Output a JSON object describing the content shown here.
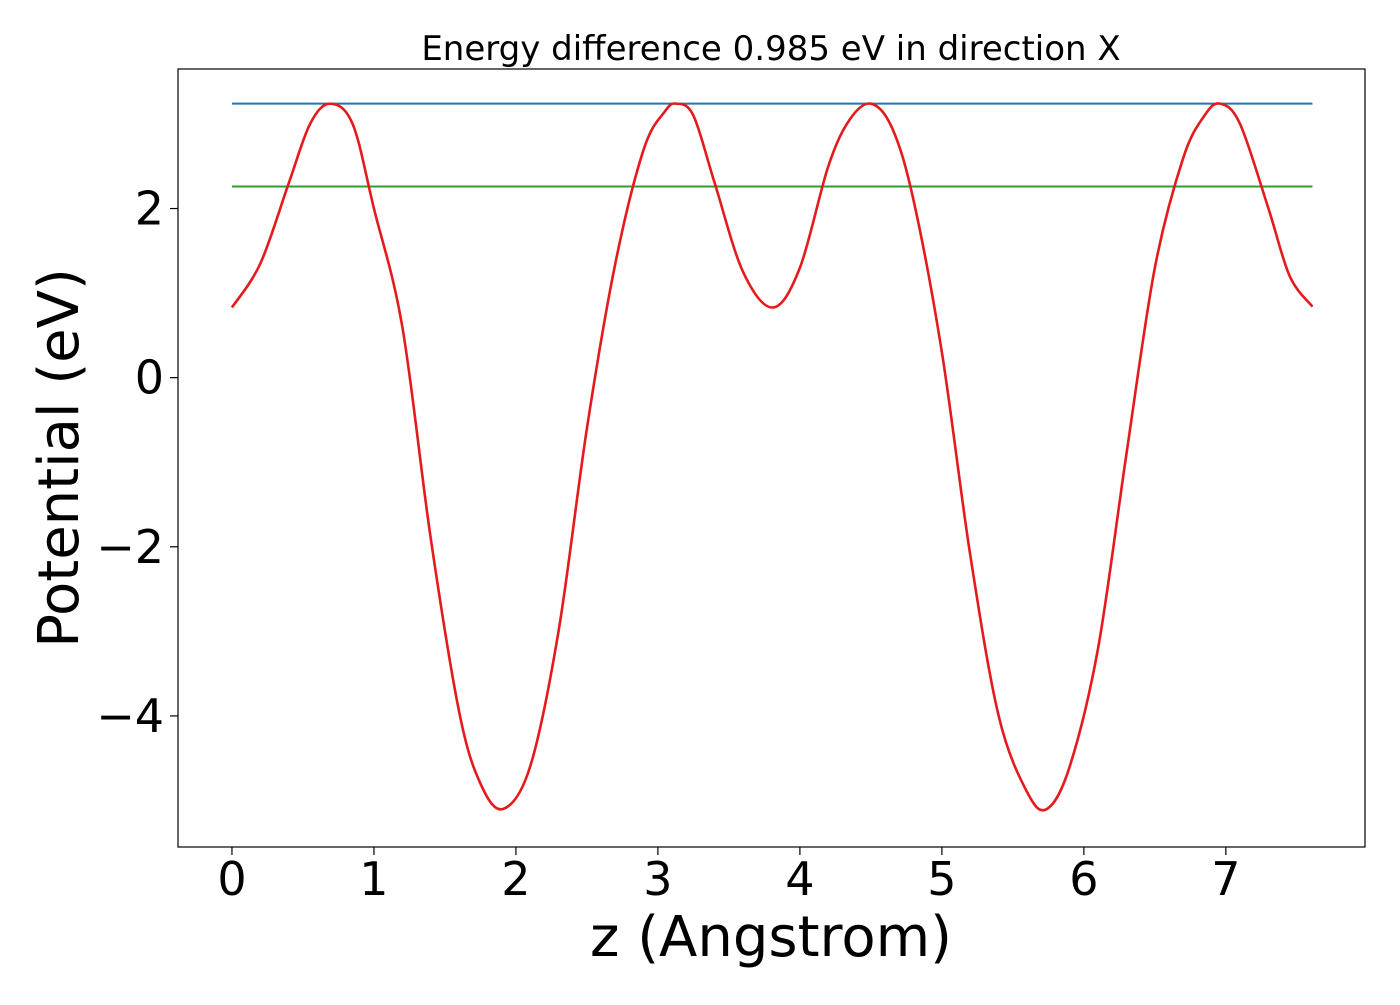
{
  "chart_data": {
    "type": "line",
    "title": "Energy difference 0.985 eV in direction X",
    "xlabel": "z (Angstrom)",
    "ylabel": "Potential (eV)",
    "xlim": [
      -0.38,
      7.98
    ],
    "ylim": [
      -5.55,
      3.65
    ],
    "x_ticks": [
      0,
      1,
      2,
      3,
      4,
      5,
      6,
      7
    ],
    "x_tick_labels": [
      "0",
      "1",
      "2",
      "3",
      "4",
      "5",
      "6",
      "7"
    ],
    "y_ticks": [
      -4,
      -2,
      0,
      2
    ],
    "y_tick_labels": [
      "−4",
      "−2",
      "0",
      "2"
    ],
    "grid": false,
    "legend": "none",
    "series": [
      {
        "color": "#1f77b4",
        "x": [
          0,
          7.61
        ],
        "y": [
          3.24,
          3.24
        ]
      },
      {
        "color": "#2ca02c",
        "x": [
          0,
          7.61
        ],
        "y": [
          2.26,
          2.26
        ]
      },
      {
        "color": "#e41a1c",
        "x": [
          0.0,
          0.2,
          0.4,
          0.55,
          0.69,
          0.85,
          1.0,
          1.2,
          1.4,
          1.6,
          1.75,
          1.91,
          2.1,
          2.3,
          2.5,
          2.7,
          2.9,
          3.05,
          3.13,
          3.25,
          3.4,
          3.6,
          3.81,
          4.0,
          4.2,
          4.35,
          4.5,
          4.65,
          4.8,
          5.0,
          5.2,
          5.4,
          5.6,
          5.74,
          5.9,
          6.1,
          6.3,
          6.5,
          6.7,
          6.85,
          6.96,
          7.1,
          7.3,
          7.45,
          7.61
        ],
        "y": [
          0.83,
          1.35,
          2.3,
          3.0,
          3.24,
          3.0,
          2.0,
          0.6,
          -1.9,
          -3.95,
          -4.8,
          -5.1,
          -4.6,
          -3.0,
          -0.6,
          1.35,
          2.7,
          3.15,
          3.24,
          3.1,
          2.3,
          1.25,
          0.83,
          1.3,
          2.5,
          3.05,
          3.24,
          2.95,
          2.1,
          0.3,
          -2.1,
          -4.0,
          -4.9,
          -5.1,
          -4.6,
          -3.2,
          -0.9,
          1.3,
          2.6,
          3.1,
          3.24,
          3.0,
          2.0,
          1.2,
          0.84
        ]
      }
    ]
  }
}
